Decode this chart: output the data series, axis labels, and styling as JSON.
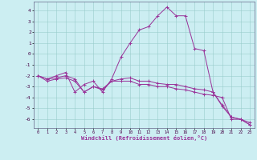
{
  "xlabel": "Windchill (Refroidissement éolien,°C)",
  "bg_color": "#cceef2",
  "line_color": "#993399",
  "grid_color": "#99cccc",
  "x_ticks": [
    0,
    1,
    2,
    3,
    4,
    5,
    6,
    7,
    8,
    9,
    10,
    11,
    12,
    13,
    14,
    15,
    16,
    17,
    18,
    19,
    20,
    21,
    22,
    23
  ],
  "y_ticks": [
    -6,
    -5,
    -4,
    -3,
    -2,
    -1,
    0,
    1,
    2,
    3,
    4
  ],
  "line1_x": [
    0,
    1,
    2,
    3,
    4,
    5,
    6,
    7,
    8,
    9,
    10,
    11,
    12,
    13,
    14,
    15,
    16,
    17,
    18,
    19,
    20,
    21,
    22,
    23
  ],
  "line1_y": [
    -2.0,
    -2.3,
    -2.0,
    -1.7,
    -3.5,
    -2.8,
    -2.5,
    -3.5,
    -2.3,
    -0.3,
    1.0,
    2.2,
    2.5,
    3.5,
    4.3,
    3.5,
    3.5,
    0.5,
    0.3,
    -3.5,
    -4.7,
    -5.8,
    -6.0,
    -6.3
  ],
  "line2_x": [
    0,
    1,
    2,
    3,
    4,
    5,
    6,
    7,
    8,
    9,
    10,
    11,
    12,
    13,
    14,
    15,
    16,
    17,
    18,
    19,
    20,
    21,
    22,
    23
  ],
  "line2_y": [
    -2.0,
    -2.5,
    -2.3,
    -2.2,
    -2.5,
    -3.5,
    -3.0,
    -3.2,
    -2.5,
    -2.5,
    -2.5,
    -2.8,
    -2.8,
    -3.0,
    -3.0,
    -3.2,
    -3.3,
    -3.5,
    -3.7,
    -3.8,
    -4.0,
    -6.0,
    -6.0,
    -6.5
  ],
  "line3_x": [
    0,
    1,
    2,
    3,
    4,
    5,
    6,
    7,
    8,
    9,
    10,
    11,
    12,
    13,
    14,
    15,
    16,
    17,
    18,
    19,
    20,
    21,
    22,
    23
  ],
  "line3_y": [
    -2.0,
    -2.3,
    -2.2,
    -2.0,
    -2.3,
    -3.5,
    -3.0,
    -3.3,
    -2.5,
    -2.3,
    -2.2,
    -2.5,
    -2.5,
    -2.7,
    -2.8,
    -2.8,
    -3.0,
    -3.2,
    -3.3,
    -3.5,
    -4.8,
    -5.8,
    -6.0,
    -6.5
  ],
  "xlim": [
    -0.5,
    23.5
  ],
  "ylim": [
    -6.8,
    4.8
  ],
  "figsize": [
    3.2,
    2.0
  ],
  "dpi": 100
}
